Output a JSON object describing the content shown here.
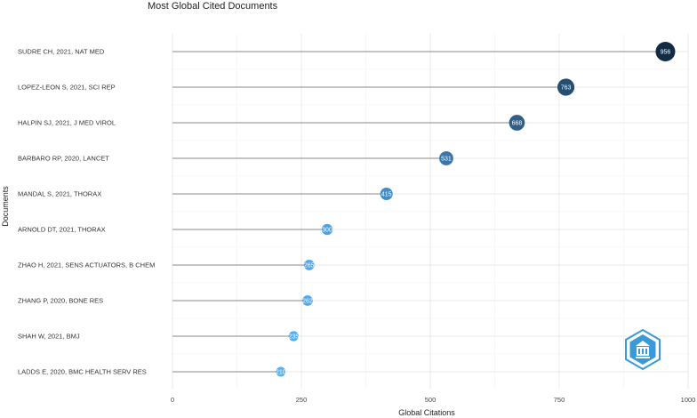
{
  "chart_data": {
    "type": "lollipop",
    "title": "Most Global Cited Documents",
    "xlabel": "Global Citations",
    "ylabel": "Documents",
    "xlim": [
      0,
      1000
    ],
    "xticks": [
      0,
      250,
      500,
      750,
      1000
    ],
    "grid": true,
    "categories": [
      "SUDRE CH, 2021, NAT MED",
      "LOPEZ-LEON S, 2021, SCI REP",
      "HALPIN SJ, 2021, J MED VIROL",
      "BARBARO RP, 2020, LANCET",
      "MANDAL S, 2021, THORAX",
      "ARNOLD DT, 2021, THORAX",
      "ZHAO H, 2021, SENS ACTUATORS, B CHEM",
      "ZHANG P, 2020, BONE RES",
      "SHAH W, 2021, BMJ",
      "LADDS E, 2020, BMC HEALTH SERV RES"
    ],
    "values": [
      956,
      763,
      668,
      531,
      415,
      300,
      265,
      262,
      235,
      210
    ],
    "value_labels": [
      "956",
      "763",
      "668",
      "531",
      "415",
      "300",
      "265",
      "262",
      "235",
      "210"
    ],
    "color_scale": {
      "low": "#56B1F7",
      "high": "#132B43"
    }
  },
  "logo": {
    "icon": "bibliometrix-logo-icon",
    "color": "#3a9ad9"
  }
}
